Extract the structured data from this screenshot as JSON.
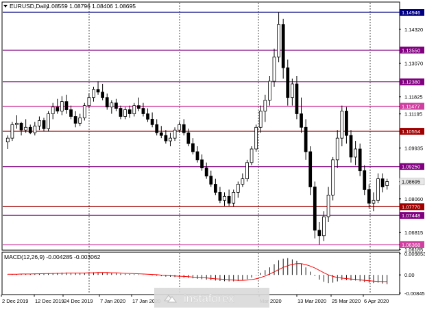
{
  "header": {
    "symbol_label": "EURUSD,Daily",
    "ohlc_label": "1.08559 1.08796 1.08406 1.08695"
  },
  "macd_label": "MACD(12,26,9) -0.004285 -0.003062",
  "watermark": "instaforex",
  "colors": {
    "bull": "#ffffff",
    "bear": "#000000",
    "macd_signal": "#ff0000",
    "price_tag_bg": "#e8e8e8"
  },
  "chart_data": {
    "type": "candlestick",
    "price_axis": {
      "range": [
        1.0619,
        1.153
      ],
      "ticks": [
        "1.14946",
        "1.14320",
        "1.13550",
        "1.13070",
        "1.12380",
        "1.11825",
        "1.11477",
        "1.11195",
        "1.10554",
        "1.09935",
        "1.09250",
        "1.08695",
        "1.08060",
        "1.07770",
        "1.07448",
        "1.06815",
        "1.06368",
        "1.06185"
      ]
    },
    "levels": [
      {
        "price": 1.14946,
        "label": "1.14946",
        "color": "#000080"
      },
      {
        "price": 1.1355,
        "label": "1.13550",
        "color": "#800080"
      },
      {
        "price": 1.1238,
        "label": "1.12380",
        "color": "#800080"
      },
      {
        "price": 1.11477,
        "label": "1.11477",
        "color": "#d040a0"
      },
      {
        "price": 1.10554,
        "label": "1.10554",
        "color": "#a00000"
      },
      {
        "price": 1.0925,
        "label": "1.09250",
        "color": "#800080"
      },
      {
        "price": 1.0777,
        "label": "1.07770",
        "color": "#a00000"
      },
      {
        "price": 1.07448,
        "label": "1.07448",
        "color": "#800080"
      },
      {
        "price": 1.06368,
        "label": "1.06368",
        "color": "#d040a0"
      }
    ],
    "current_price": {
      "price": 1.08695,
      "label": "1.08695"
    },
    "x_labels": [
      "2 Dec 2019",
      "12 Dec 2019",
      "24 Dec 2019",
      "7 Jan 2020",
      "17 Jan 2020",
      "Mar 2020",
      "13 Mar 2020",
      "25 Mar 2020",
      "6 Apr 2020"
    ],
    "candles": [
      [
        1.1016,
        1.104,
        1.099,
        1.103
      ],
      [
        1.103,
        1.109,
        1.102,
        1.108
      ],
      [
        1.108,
        1.1115,
        1.1065,
        1.1085
      ],
      [
        1.1085,
        1.109,
        1.104,
        1.106
      ],
      [
        1.106,
        1.11,
        1.105,
        1.107
      ],
      [
        1.107,
        1.108,
        1.1045,
        1.105
      ],
      [
        1.105,
        1.109,
        1.104,
        1.1075
      ],
      [
        1.1075,
        1.111,
        1.106,
        1.1095
      ],
      [
        1.1095,
        1.1105,
        1.1055,
        1.1065
      ],
      [
        1.1065,
        1.113,
        1.1055,
        1.112
      ],
      [
        1.112,
        1.116,
        1.11,
        1.1145
      ],
      [
        1.1145,
        1.1175,
        1.112,
        1.113
      ],
      [
        1.113,
        1.1185,
        1.1115,
        1.1165
      ],
      [
        1.1165,
        1.119,
        1.112,
        1.1135
      ],
      [
        1.1135,
        1.115,
        1.11,
        1.111
      ],
      [
        1.111,
        1.113,
        1.107,
        1.1085
      ],
      [
        1.1085,
        1.112,
        1.1075,
        1.1105
      ],
      [
        1.1105,
        1.116,
        1.1095,
        1.115
      ],
      [
        1.115,
        1.1195,
        1.114,
        1.118
      ],
      [
        1.118,
        1.122,
        1.1165,
        1.121
      ],
      [
        1.121,
        1.124,
        1.119,
        1.12
      ],
      [
        1.12,
        1.123,
        1.117,
        1.118
      ],
      [
        1.118,
        1.1195,
        1.1135,
        1.1145
      ],
      [
        1.1145,
        1.117,
        1.112,
        1.116
      ],
      [
        1.116,
        1.1175,
        1.113,
        1.114
      ],
      [
        1.114,
        1.115,
        1.11,
        1.111
      ],
      [
        1.111,
        1.1145,
        1.11,
        1.1135
      ],
      [
        1.1135,
        1.115,
        1.1105,
        1.112
      ],
      [
        1.112,
        1.116,
        1.111,
        1.115
      ],
      [
        1.115,
        1.118,
        1.113,
        1.114
      ],
      [
        1.114,
        1.116,
        1.111,
        1.112
      ],
      [
        1.112,
        1.114,
        1.109,
        1.11
      ],
      [
        1.11,
        1.1125,
        1.107,
        1.108
      ],
      [
        1.108,
        1.11,
        1.104,
        1.105
      ],
      [
        1.105,
        1.1075,
        1.103,
        1.104
      ],
      [
        1.104,
        1.106,
        1.101,
        1.102
      ],
      [
        1.102,
        1.105,
        1.1,
        1.103
      ],
      [
        1.103,
        1.107,
        1.102,
        1.106
      ],
      [
        1.106,
        1.109,
        1.105,
        1.108
      ],
      [
        1.108,
        1.11,
        1.104,
        1.105
      ],
      [
        1.105,
        1.1065,
        1.1,
        1.101
      ],
      [
        1.101,
        1.103,
        1.097,
        1.098
      ],
      [
        1.098,
        1.1,
        1.094,
        1.095
      ],
      [
        1.095,
        1.097,
        1.091,
        1.092
      ],
      [
        1.092,
        1.094,
        1.088,
        1.089
      ],
      [
        1.089,
        1.091,
        1.085,
        1.086
      ],
      [
        1.086,
        1.088,
        1.082,
        1.083
      ],
      [
        1.083,
        1.085,
        1.079,
        1.08
      ],
      [
        1.08,
        1.083,
        1.078,
        1.0815
      ],
      [
        1.0815,
        1.084,
        1.078,
        1.079
      ],
      [
        1.079,
        1.084,
        1.0778,
        1.083
      ],
      [
        1.083,
        1.087,
        1.081,
        1.086
      ],
      [
        1.086,
        1.09,
        1.085,
        1.088
      ],
      [
        1.088,
        1.095,
        1.087,
        1.094
      ],
      [
        1.094,
        1.1,
        1.093,
        1.099
      ],
      [
        1.099,
        1.108,
        1.098,
        1.107
      ],
      [
        1.107,
        1.115,
        1.105,
        1.113
      ],
      [
        1.113,
        1.119,
        1.109,
        1.117
      ],
      [
        1.117,
        1.126,
        1.115,
        1.124
      ],
      [
        1.124,
        1.136,
        1.122,
        1.133
      ],
      [
        1.133,
        1.1495,
        1.131,
        1.145
      ],
      [
        1.145,
        1.147,
        1.125,
        1.129
      ],
      [
        1.129,
        1.132,
        1.115,
        1.118
      ],
      [
        1.118,
        1.125,
        1.115,
        1.123
      ],
      [
        1.123,
        1.126,
        1.11,
        1.112
      ],
      [
        1.112,
        1.118,
        1.105,
        1.107
      ],
      [
        1.107,
        1.11,
        1.095,
        1.098
      ],
      [
        1.098,
        1.1,
        1.082,
        1.085
      ],
      [
        1.085,
        1.087,
        1.066,
        1.069
      ],
      [
        1.069,
        1.072,
        1.0637,
        1.067
      ],
      [
        1.067,
        1.076,
        1.065,
        1.074
      ],
      [
        1.074,
        1.085,
        1.072,
        1.082
      ],
      [
        1.082,
        1.096,
        1.08,
        1.095
      ],
      [
        1.095,
        1.106,
        1.092,
        1.103
      ],
      [
        1.103,
        1.115,
        1.1,
        1.113
      ],
      [
        1.113,
        1.1145,
        1.101,
        1.104
      ],
      [
        1.104,
        1.106,
        1.094,
        1.096
      ],
      [
        1.096,
        1.102,
        1.093,
        1.099
      ],
      [
        1.099,
        1.101,
        1.089,
        1.091
      ],
      [
        1.091,
        1.093,
        1.082,
        1.084
      ],
      [
        1.084,
        1.086,
        1.077,
        1.079
      ],
      [
        1.079,
        1.083,
        1.076,
        1.08
      ],
      [
        1.08,
        1.09,
        1.079,
        1.088
      ],
      [
        1.088,
        1.09,
        1.083,
        1.085
      ],
      [
        1.0855,
        1.088,
        1.084,
        1.087
      ]
    ],
    "macd_axis": {
      "range": [
        -0.0085,
        0.0099
      ],
      "ticks": [
        "0.009853",
        "0.00",
        "-0.008453"
      ]
    },
    "macd_hist": [
      0.0002,
      0.0003,
      0.0004,
      0.0005,
      0.0005,
      0.0005,
      0.0006,
      0.0007,
      0.0007,
      0.0008,
      0.0009,
      0.001,
      0.0011,
      0.0011,
      0.001,
      0.0009,
      0.0009,
      0.001,
      0.0011,
      0.0012,
      0.0012,
      0.0011,
      0.001,
      0.0009,
      0.0008,
      0.0006,
      0.0005,
      0.0004,
      0.0003,
      0.0002,
      0.0001,
      0.0,
      -0.0002,
      -0.0004,
      -0.0006,
      -0.0008,
      -0.0009,
      -0.001,
      -0.0011,
      -0.0012,
      -0.0014,
      -0.0016,
      -0.0018,
      -0.002,
      -0.0022,
      -0.0024,
      -0.0026,
      -0.0028,
      -0.0029,
      -0.003,
      -0.003,
      -0.0028,
      -0.0025,
      -0.002,
      -0.0012,
      -0.0002,
      0.001,
      0.0022,
      0.0035,
      0.005,
      0.0068,
      0.0075,
      0.0078,
      0.0072,
      0.0065,
      0.0052,
      0.0035,
      0.0015,
      -0.0005,
      -0.0022,
      -0.0032,
      -0.0038,
      -0.0036,
      -0.003,
      -0.0024,
      -0.0024,
      -0.0026,
      -0.0026,
      -0.003,
      -0.0033,
      -0.0036,
      -0.0038,
      -0.0036,
      -0.004,
      -0.0043
    ],
    "macd_signal": [
      0.0003,
      0.0003,
      0.0003,
      0.0004,
      0.0004,
      0.0004,
      0.0005,
      0.0005,
      0.0006,
      0.0006,
      0.0007,
      0.0008,
      0.0008,
      0.0009,
      0.0009,
      0.0009,
      0.0009,
      0.0009,
      0.001,
      0.001,
      0.0011,
      0.0011,
      0.0011,
      0.001,
      0.001,
      0.0009,
      0.0008,
      0.0007,
      0.0006,
      0.0005,
      0.0004,
      0.0003,
      0.0002,
      0.0001,
      -0.0001,
      -0.0002,
      -0.0004,
      -0.0005,
      -0.0006,
      -0.0007,
      -0.0008,
      -0.001,
      -0.0011,
      -0.0013,
      -0.0014,
      -0.0016,
      -0.0018,
      -0.0019,
      -0.0021,
      -0.0023,
      -0.0024,
      -0.0025,
      -0.0025,
      -0.0024,
      -0.0022,
      -0.0018,
      -0.0012,
      -0.0005,
      0.0004,
      0.0014,
      0.0025,
      0.0035,
      0.0043,
      0.0049,
      0.0052,
      0.0052,
      0.0048,
      0.0041,
      0.0032,
      0.0021,
      0.001,
      0.0,
      -0.0007,
      -0.0012,
      -0.0015,
      -0.0017,
      -0.0019,
      -0.0021,
      -0.0023,
      -0.0025,
      -0.0027,
      -0.0029,
      -0.003,
      -0.0031,
      -0.0031
    ]
  }
}
